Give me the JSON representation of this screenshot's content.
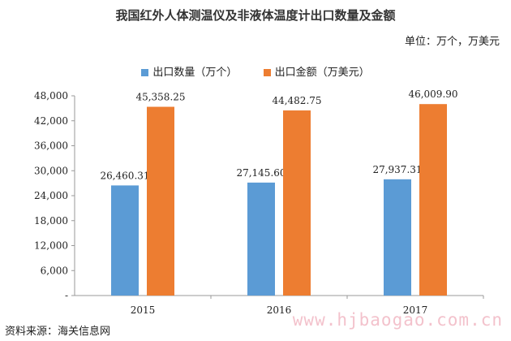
{
  "title": "我国红外人体测温仪及非液体温度计出口数量及金额",
  "unit_note": "单位：万个，万美元",
  "source": "资料来源：海关信息网",
  "watermark": "www.hjbaogao.com.cn",
  "chart_data": {
    "type": "bar",
    "title": "我国红外人体测温仪及非液体温度计出口数量及金额",
    "categories": [
      "2015",
      "2016",
      "2017"
    ],
    "series": [
      {
        "name": "出口数量（万个）",
        "values": [
          26460.31,
          27145.6,
          27937.31
        ],
        "labels": [
          "26,460.31",
          "27,145.60",
          "27,937.31"
        ],
        "color": "#5b9bd5"
      },
      {
        "name": "出口金额（万美元）",
        "values": [
          45358.25,
          44482.75,
          46009.9
        ],
        "labels": [
          "45,358.25",
          "44,482.75",
          "46,009.90"
        ],
        "color": "#ed7d31"
      }
    ],
    "ylim": [
      0,
      48000
    ],
    "yticks": [
      0,
      6000,
      12000,
      18000,
      24000,
      30000,
      36000,
      42000,
      48000
    ],
    "ytick_labels": [
      "-",
      "6,000",
      "12,000",
      "18,000",
      "24,000",
      "30,000",
      "36,000",
      "42,000",
      "48,000"
    ],
    "legend_position": "top",
    "grid": false
  }
}
